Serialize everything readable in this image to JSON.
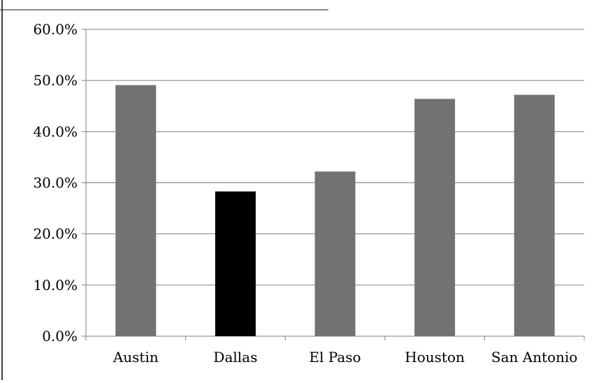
{
  "chart_data": {
    "type": "bar",
    "title": "",
    "xlabel": "",
    "ylabel": "",
    "categories": [
      "Austin",
      "Dallas",
      "El Paso",
      "Houston",
      "San Antonio"
    ],
    "values": [
      49.1,
      28.3,
      32.2,
      46.4,
      47.2
    ],
    "colors": [
      "#727272",
      "#000000",
      "#727272",
      "#727272",
      "#727272"
    ],
    "ylim": [
      0,
      60
    ],
    "yticks": [
      0,
      10,
      20,
      30,
      40,
      50,
      60
    ],
    "ytick_labels": [
      "0.0%",
      "10.0%",
      "20.0%",
      "30.0%",
      "40.0%",
      "50.0%",
      "60.0%"
    ],
    "grid": true,
    "legend": "none"
  }
}
